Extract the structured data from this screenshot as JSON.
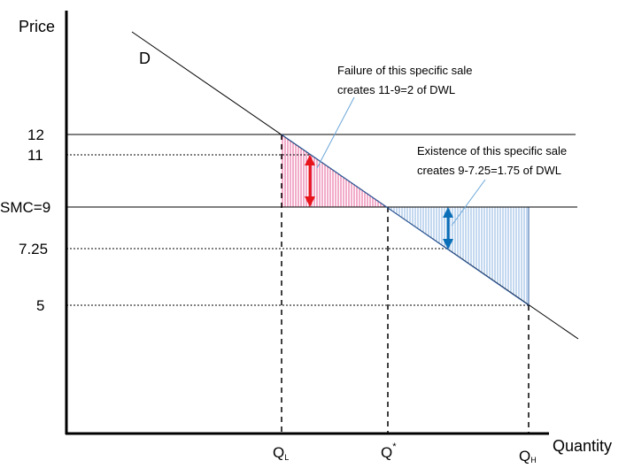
{
  "axes": {
    "y_label": "Price",
    "x_label": "Quantity"
  },
  "curve_label": "D",
  "price_ticks": [
    {
      "label": "12",
      "value": 12
    },
    {
      "label": "11",
      "value": 11
    },
    {
      "label": "SMC=9",
      "value": 9
    },
    {
      "label": "7.25",
      "value": 7.25
    },
    {
      "label": "5",
      "value": 5
    }
  ],
  "quantity_ticks": {
    "ql": {
      "main": "Q",
      "sub": "L"
    },
    "qstar": {
      "main": "Q",
      "sup": "*"
    },
    "qh": {
      "main": "Q",
      "sub": "H"
    }
  },
  "annotations": {
    "failure_line1": "Failure of this specific sale",
    "failure_line2": "creates 11-9=2 of DWL",
    "existence_line1": "Existence of this specific sale",
    "existence_line2": "creates 9-7.25=1.75 of DWL"
  },
  "colors": {
    "low_region": "#e0317a",
    "high_region": "#6a9fd8",
    "red_arrow": "#e8141c",
    "blue_arrow": "#0b6fb8",
    "callout_line": "#6aa6d8",
    "demand_line": "#000000"
  }
}
